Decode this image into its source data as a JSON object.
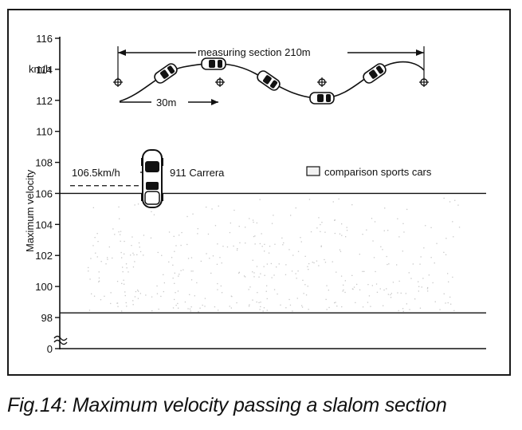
{
  "caption": "Fig.14: Maximum velocity passing a slalom section",
  "chart_data": {
    "type": "bar",
    "ylabel": "Maximum velocity",
    "unit_label": "km/h",
    "yticks": [
      116,
      114,
      112,
      110,
      108,
      106,
      104,
      102,
      100,
      98
    ],
    "base_tick": 0,
    "ylim": [
      97,
      116
    ],
    "axis_break": true,
    "grid": false,
    "legend": {
      "position": "top-right",
      "label": "comparison sports cars"
    },
    "reference_lines": [
      106.0,
      98.3
    ],
    "highlight": {
      "name": "911 Carrera",
      "value": 106.5,
      "label": "106.5km/h"
    },
    "slalom_diagram": {
      "measuring_label": "measuring section 210m",
      "spacing_label": "30m"
    },
    "colors": {
      "ink": "#111111",
      "stipple": "#c8c8c8"
    }
  }
}
